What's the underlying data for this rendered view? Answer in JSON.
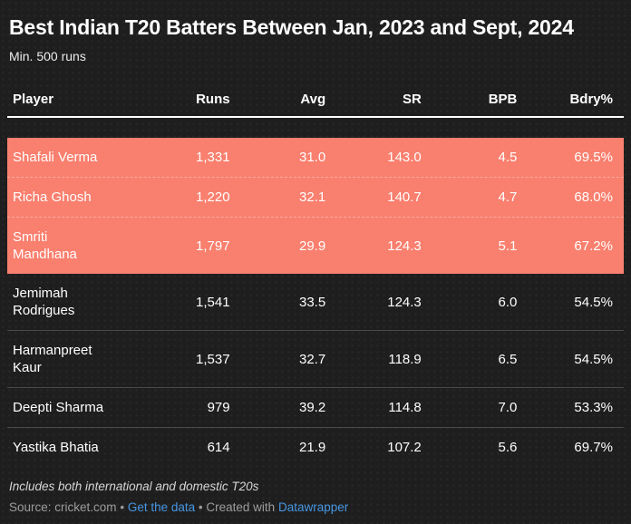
{
  "colors": {
    "background": "#1E1E1E",
    "highlight": "#F97F6E",
    "link": "#4796E3",
    "row_text": "#FFFFFF",
    "muted_text": "#9D9D9D"
  },
  "header": {
    "title": "Best Indian T20 Batters Between Jan, 2023 and Sept, 2024",
    "subtitle": "Min. 500 runs"
  },
  "table": {
    "columns": [
      {
        "label": "Player"
      },
      {
        "label": "Runs"
      },
      {
        "label": "Avg"
      },
      {
        "label": "SR"
      },
      {
        "label": "BPB"
      },
      {
        "label": "Bdry%"
      }
    ],
    "rows": [
      {
        "player": "Shafali Verma",
        "runs": "1,331",
        "avg": "31.0",
        "sr": "143.0",
        "bpb": "4.5",
        "bdry": "69.5%",
        "highlighted": true
      },
      {
        "player": "Richa Ghosh",
        "runs": "1,220",
        "avg": "32.1",
        "sr": "140.7",
        "bpb": "4.7",
        "bdry": "68.0%",
        "highlighted": true
      },
      {
        "player": "Smriti\nMandhana",
        "runs": "1,797",
        "avg": "29.9",
        "sr": "124.3",
        "bpb": "5.1",
        "bdry": "67.2%",
        "highlighted": true
      },
      {
        "player": "Jemimah\nRodrigues",
        "runs": "1,541",
        "avg": "33.5",
        "sr": "124.3",
        "bpb": "6.0",
        "bdry": "54.5%",
        "highlighted": false
      },
      {
        "player": "Harmanpreet\nKaur",
        "runs": "1,537",
        "avg": "32.7",
        "sr": "118.9",
        "bpb": "6.5",
        "bdry": "54.5%",
        "highlighted": false
      },
      {
        "player": "Deepti Sharma",
        "runs": "979",
        "avg": "39.2",
        "sr": "114.8",
        "bpb": "7.0",
        "bdry": "53.3%",
        "highlighted": false
      },
      {
        "player": "Yastika Bhatia",
        "runs": "614",
        "avg": "21.9",
        "sr": "107.2",
        "bpb": "5.6",
        "bdry": "69.7%",
        "highlighted": false
      }
    ]
  },
  "footer": {
    "note": "Includes both international and domestic T20s",
    "source_label": "Source:",
    "source_name": "cricket.com",
    "bullet": "•",
    "get_data_label": "Get the data",
    "created_with_label": "Created with",
    "brand_label": "Datawrapper"
  },
  "chart_data": {
    "type": "table",
    "title": "Best Indian T20 Batters Between Jan, 2023 and Sept, 2024",
    "subtitle": "Min. 500 runs",
    "columns": [
      "Player",
      "Runs",
      "Avg",
      "SR",
      "BPB",
      "Bdry%"
    ],
    "rows": [
      [
        "Shafali Verma",
        1331,
        31.0,
        143.0,
        4.5,
        69.5
      ],
      [
        "Richa Ghosh",
        1220,
        32.1,
        140.7,
        4.7,
        68.0
      ],
      [
        "Smriti Mandhana",
        1797,
        29.9,
        124.3,
        5.1,
        67.2
      ],
      [
        "Jemimah Rodrigues",
        1541,
        33.5,
        124.3,
        6.0,
        54.5
      ],
      [
        "Harmanpreet Kaur",
        1537,
        32.7,
        118.9,
        6.5,
        54.5
      ],
      [
        "Deepti Sharma",
        979,
        39.2,
        114.8,
        7.0,
        53.3
      ],
      [
        "Yastika Bhatia",
        614,
        21.9,
        107.2,
        5.6,
        69.7
      ]
    ],
    "highlighted_rows": [
      0,
      1,
      2
    ],
    "highlight_color": "#F97F6E",
    "note": "Includes both international and domestic T20s",
    "source": "cricket.com"
  }
}
